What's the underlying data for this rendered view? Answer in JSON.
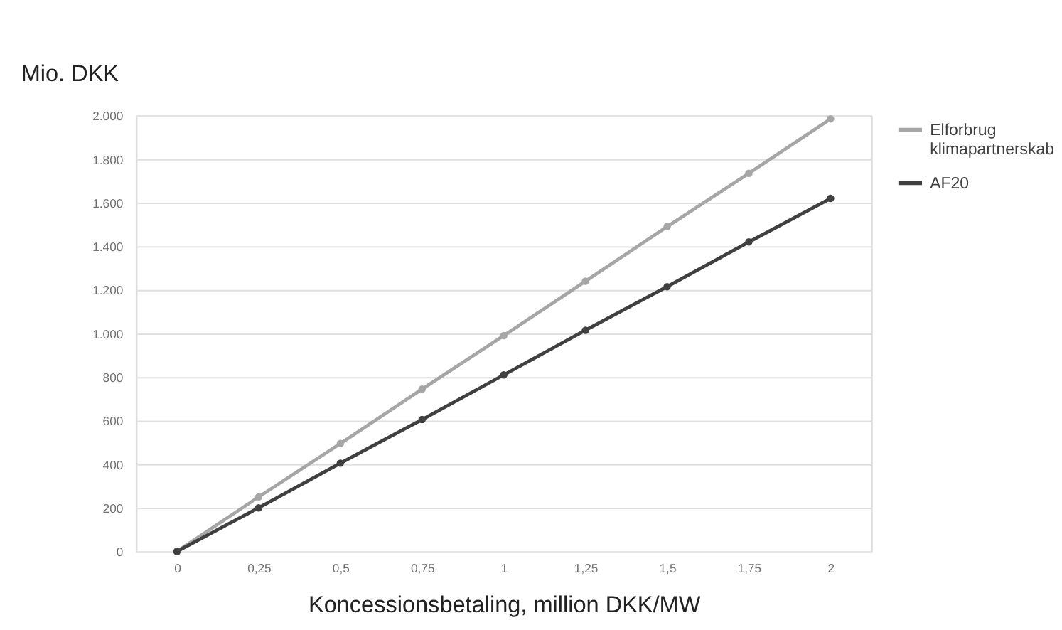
{
  "chart_data": {
    "type": "line",
    "xlabel": "Koncessionsbetaling, million DKK/MW",
    "ylabel": "Mio. DKK",
    "categories": [
      "0",
      "0,25",
      "0,5",
      "0,75",
      "1",
      "1,25",
      "1,5",
      "1,75",
      "2"
    ],
    "series": [
      {
        "name": "Elforbrug klimapartnerskab",
        "color": "#a6a6a6",
        "values": [
          0,
          250,
          495,
          745,
          990,
          1240,
          1490,
          1735,
          1985
        ]
      },
      {
        "name": "AF20",
        "color": "#404040",
        "values": [
          0,
          200,
          405,
          605,
          810,
          1015,
          1215,
          1420,
          1620
        ]
      }
    ],
    "ylim": [
      0,
      2000
    ],
    "yticks": [
      0,
      {
        "value": 200,
        "label": "200"
      },
      {
        "value": 400,
        "label": "400"
      },
      {
        "value": 600,
        "label": "600"
      },
      {
        "value": 800,
        "label": "800"
      },
      {
        "value": 1000,
        "label": "1.000"
      },
      {
        "value": 1200,
        "label": "1.200"
      },
      {
        "value": 1400,
        "label": "1.400"
      },
      {
        "value": 1600,
        "label": "1.600"
      },
      {
        "value": 1800,
        "label": "1.800"
      },
      {
        "value": 2000,
        "label": "2.000"
      }
    ],
    "grid": "y",
    "legend": "right",
    "marker": "circle",
    "line_style": "solid"
  }
}
